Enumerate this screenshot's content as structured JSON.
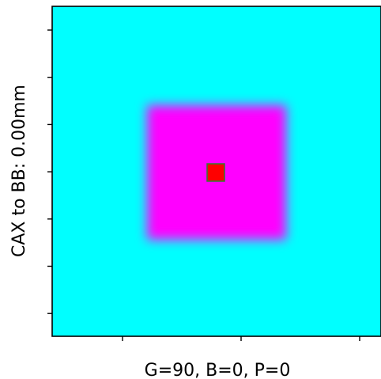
{
  "chart_data": {
    "type": "heatmap",
    "title": "",
    "xlabel": "G=90, B=0, P=0",
    "ylabel": "CAX to BB: 0.00mm",
    "xtick_labels": [],
    "ytick_labels": [],
    "x_ticks_count": 3,
    "y_ticks_count": 7,
    "colors": {
      "background_field": "#00ffff",
      "open_field": "#ff00ff",
      "bb_marker": "#ff0000",
      "bb_outline": "#2e7d32",
      "frame": "#000000"
    }
  }
}
